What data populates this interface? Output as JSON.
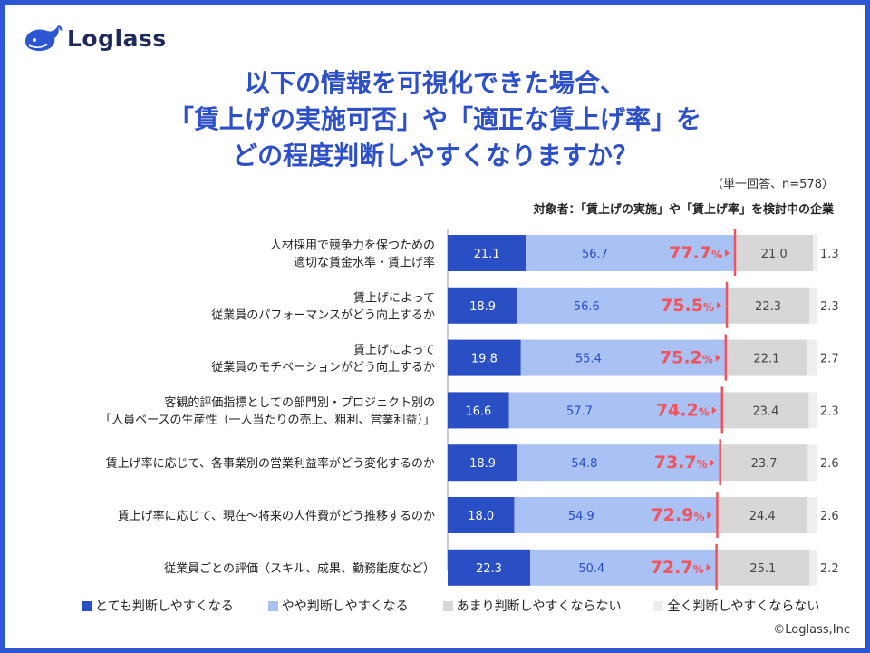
{
  "header": {
    "logo_text": "Loglass",
    "title_lines": [
      "以下の情報を可視化できた場合、",
      "「賃上げの実施可否」や「適正な賃上げ率」を",
      "どの程度判断しやすくなりますか？"
    ],
    "note": "（単一回答、n=578）",
    "target": "対象者：「賃上げの実施」や「賃上げ率」を検討中の企業"
  },
  "footer": {
    "copyright": "©Loglass,Inc"
  },
  "colors": {
    "frame": "#2d56d3",
    "series": [
      "#2a4fc4",
      "#a9c1f3",
      "#d7d7d7",
      "#eeeeee"
    ],
    "highlight": "#f0545e"
  },
  "chart_data": {
    "type": "bar",
    "orientation": "horizontal",
    "stacked": true,
    "unit": "%",
    "xlim": [
      0,
      100
    ],
    "categories": [
      [
        "人材採用で競争力を保つための",
        "適切な賃金水準・賃上げ率"
      ],
      [
        "賃上げによって",
        "従業員のパフォーマンスがどう向上するか"
      ],
      [
        "賃上げによって",
        "従業員のモチベーションがどう向上するか"
      ],
      [
        "客観的評価指標としての部門別・プロジェクト別の",
        "「人員ベースの生産性（一人当たりの売上、粗利、営業利益）」"
      ],
      [
        "賃上げ率に応じて、各事業別の営業利益率がどう変化するのか"
      ],
      [
        "賃上げ率に応じて、現在〜将来の人件費がどう推移するのか"
      ],
      [
        "従業員ごとの評価（スキル、成果、勤務能度など）"
      ]
    ],
    "series": [
      {
        "name": "とても判断しやすくなる",
        "values": [
          21.1,
          18.9,
          19.8,
          16.6,
          18.9,
          18.0,
          22.3
        ]
      },
      {
        "name": "やや判断しやすくなる",
        "values": [
          56.7,
          56.6,
          55.4,
          57.7,
          54.8,
          54.9,
          50.4
        ]
      },
      {
        "name": "あまり判断しやすくならない",
        "values": [
          21.0,
          22.3,
          22.1,
          23.4,
          23.7,
          24.4,
          25.1
        ]
      },
      {
        "name": "全く判断しやすくならない",
        "values": [
          1.3,
          2.3,
          2.7,
          2.3,
          2.6,
          2.6,
          2.2
        ]
      }
    ],
    "totals": {
      "values": [
        77.7,
        75.5,
        75.2,
        74.2,
        73.7,
        72.9,
        72.7
      ],
      "unit": "%"
    }
  }
}
